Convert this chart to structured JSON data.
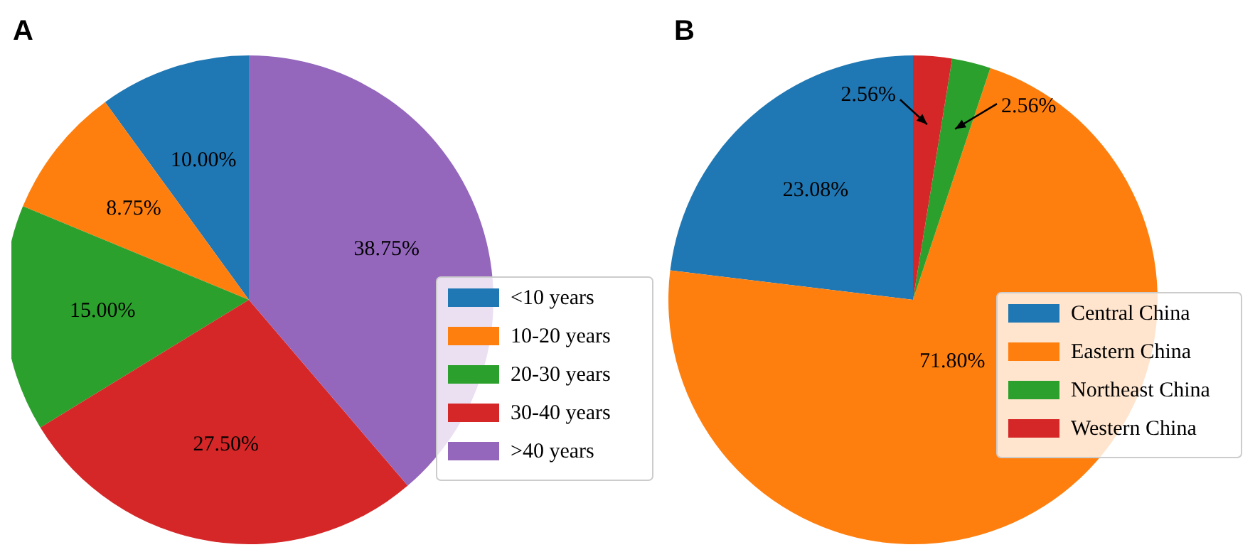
{
  "chart_data": [
    {
      "type": "pie",
      "title": "A",
      "categories": [
        "<10 years",
        "10-20 years",
        "20-30 years",
        "30-40 years",
        ">40 years"
      ],
      "values": [
        10.0,
        8.75,
        15.0,
        27.5,
        38.75
      ],
      "value_labels": [
        "10.00%",
        "8.75%",
        "15.00%",
        "27.50%",
        "38.75%"
      ],
      "colors": [
        "#1f77b4",
        "#ff7f0e",
        "#2ca02c",
        "#d62728",
        "#9467bd"
      ],
      "legend": "right"
    },
    {
      "type": "pie",
      "title": "B",
      "categories": [
        "Central China",
        "Eastern China",
        "Northeast China",
        "Western China"
      ],
      "values": [
        23.08,
        71.8,
        2.56,
        2.56
      ],
      "value_labels": [
        "23.08%",
        "71.80%",
        "2.56%",
        "2.56%"
      ],
      "colors": [
        "#1f77b4",
        "#ff7f0e",
        "#2ca02c",
        "#d62728"
      ],
      "legend": "right"
    }
  ]
}
